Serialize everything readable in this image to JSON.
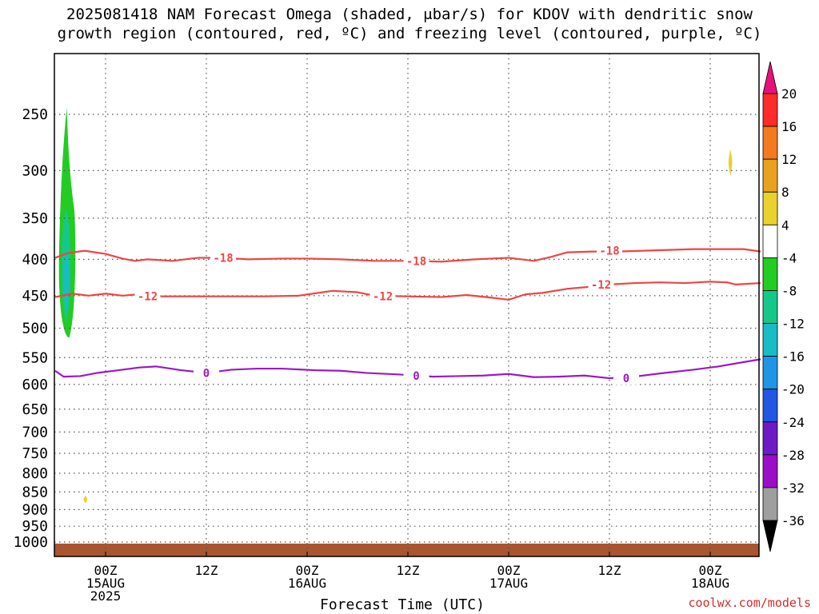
{
  "title_line1": "2025081418 NAM Forecast Omega (shaded, μbar/s) for KDOV with dendritic snow",
  "title_line2": "growth region (contoured, red, ºC) and freezing level (contoured, purple, ºC)",
  "credit": "coolwx.com/models",
  "chart_data": {
    "type": "contour",
    "xlabel": "Forecast Time (UTC)",
    "ylabel": "",
    "x_ticks": [
      {
        "hour": 6,
        "label": [
          "00Z",
          "15AUG",
          "2025"
        ]
      },
      {
        "hour": 18,
        "label": [
          "12Z"
        ]
      },
      {
        "hour": 30,
        "label": [
          "00Z",
          "16AUG"
        ]
      },
      {
        "hour": 42,
        "label": [
          "12Z"
        ]
      },
      {
        "hour": 54,
        "label": [
          "00Z",
          "17AUG"
        ]
      },
      {
        "hour": 66,
        "label": [
          "12Z"
        ]
      },
      {
        "hour": 78,
        "label": [
          "00Z",
          "18AUG"
        ]
      }
    ],
    "xlim": [
      0,
      84
    ],
    "y_ticks": [
      250,
      300,
      350,
      400,
      450,
      500,
      550,
      600,
      650,
      700,
      750,
      800,
      850,
      900,
      950,
      1000
    ],
    "ylim": [
      1010,
      200
    ],
    "y_scale": "log-pressure",
    "grid": true,
    "colorbar": {
      "labels": [
        "20",
        "16",
        "12",
        "8",
        "4",
        "-4",
        "-8",
        "-12",
        "-16",
        "-20",
        "-24",
        "-28",
        "-32",
        "-36"
      ],
      "colors": [
        "#ff2a2a",
        "#f37a1e",
        "#e8a220",
        "#e9d12e",
        "#ffffff",
        "#22cc22",
        "#15c88a",
        "#19bcc4",
        "#1f95e6",
        "#2356e2",
        "#6d1bc6",
        "#9a0ec8",
        "#9e9e9e"
      ],
      "top_arrow_color": "#e8117a",
      "bottom_arrow_color": "#000000"
    },
    "series": [
      {
        "name": "-18",
        "color": "#ee4444",
        "points": [
          [
            0,
            398
          ],
          [
            1.5,
            392
          ],
          [
            3.5,
            389
          ],
          [
            6,
            393
          ],
          [
            8,
            399
          ],
          [
            9.5,
            402
          ],
          [
            11,
            400
          ],
          [
            14,
            402
          ],
          [
            17,
            398
          ],
          [
            20,
            398
          ],
          [
            23,
            400
          ],
          [
            27,
            399
          ],
          [
            30,
            399
          ],
          [
            34,
            400
          ],
          [
            38,
            402
          ],
          [
            42,
            402
          ],
          [
            46,
            403
          ],
          [
            50,
            400
          ],
          [
            54,
            398
          ],
          [
            57,
            402
          ],
          [
            59,
            397
          ],
          [
            61,
            391
          ],
          [
            64,
            390
          ],
          [
            67,
            390
          ],
          [
            70,
            389
          ],
          [
            73,
            388
          ],
          [
            76,
            387
          ],
          [
            79,
            387
          ],
          [
            82,
            387
          ],
          [
            84,
            390
          ]
        ],
        "labels": [
          [
            20,
            398
          ],
          [
            43,
            402
          ],
          [
            66,
            389
          ]
        ]
      },
      {
        "name": "-12",
        "color": "#ee4444",
        "points": [
          [
            0,
            452
          ],
          [
            2,
            447
          ],
          [
            4,
            450
          ],
          [
            6,
            447
          ],
          [
            8,
            450
          ],
          [
            10,
            448
          ],
          [
            12,
            451
          ],
          [
            16,
            451
          ],
          [
            20,
            451
          ],
          [
            25,
            451
          ],
          [
            29,
            450
          ],
          [
            33,
            443
          ],
          [
            36,
            445
          ],
          [
            38,
            450
          ],
          [
            42,
            451
          ],
          [
            46,
            452
          ],
          [
            49,
            449
          ],
          [
            52,
            453
          ],
          [
            54,
            456
          ],
          [
            56,
            448
          ],
          [
            58,
            446
          ],
          [
            61,
            440
          ],
          [
            63,
            438
          ],
          [
            66,
            434
          ],
          [
            69,
            432
          ],
          [
            72,
            431
          ],
          [
            75,
            432
          ],
          [
            78,
            430
          ],
          [
            80,
            431
          ],
          [
            81,
            434
          ],
          [
            84,
            432
          ]
        ],
        "labels": [
          [
            11,
            451
          ],
          [
            39,
            451
          ],
          [
            65,
            434
          ]
        ]
      },
      {
        "name": "0",
        "color": "#9b18c8",
        "points": [
          [
            0,
            574
          ],
          [
            1,
            585
          ],
          [
            3,
            584
          ],
          [
            5,
            578
          ],
          [
            8,
            572
          ],
          [
            10,
            568
          ],
          [
            12,
            566
          ],
          [
            15,
            573
          ],
          [
            18,
            578
          ],
          [
            21,
            572
          ],
          [
            24,
            570
          ],
          [
            27,
            570
          ],
          [
            31,
            573
          ],
          [
            34,
            574
          ],
          [
            37,
            578
          ],
          [
            41,
            581
          ],
          [
            45,
            585
          ],
          [
            48,
            584
          ],
          [
            51,
            583
          ],
          [
            54,
            580
          ],
          [
            57,
            586
          ],
          [
            60,
            585
          ],
          [
            63,
            583
          ],
          [
            66,
            588
          ],
          [
            69,
            585
          ],
          [
            72,
            579
          ],
          [
            76,
            572
          ],
          [
            79,
            566
          ],
          [
            82,
            558
          ],
          [
            84,
            553
          ]
        ],
        "labels": [
          [
            18,
            578
          ],
          [
            43,
            583
          ],
          [
            68,
            588
          ]
        ]
      }
    ],
    "shaded_regions": [
      {
        "value": "-8",
        "color": "#22cc22",
        "shape": "plume",
        "x_hours": [
          0.5,
          2.3
        ],
        "p_top": 245,
        "p_bottom": 515
      },
      {
        "value": "-12",
        "color": "#15c88a",
        "shape": "core",
        "x_hours": [
          0.6,
          2.0
        ],
        "p_top": 340,
        "p_bottom": 490
      },
      {
        "value": "-16",
        "color": "#19bcc4",
        "shape": "core",
        "x_hours": [
          0.9,
          1.8
        ],
        "p_top": 390,
        "p_bottom": 470
      },
      {
        "value": "4",
        "color": "#e9d12e",
        "shape": "blob",
        "x_hours": [
          3.4,
          3.8
        ],
        "p_top": 860,
        "p_bottom": 882
      },
      {
        "value": "4",
        "color": "#e9d12e",
        "shape": "blob",
        "x_hours": [
          80.2,
          80.6
        ],
        "p_top": 280,
        "p_bottom": 305
      }
    ],
    "ground": {
      "color": "#a85530",
      "p_top": 1005
    }
  }
}
